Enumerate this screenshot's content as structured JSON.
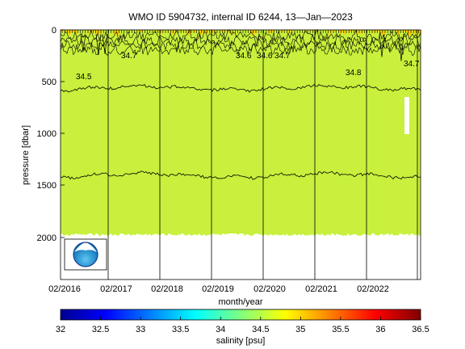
{
  "chart_data": {
    "type": "heatmap",
    "title": "WMO ID 5904732, internal ID 6244, 13—Jan—2023",
    "xlabel": "month/year",
    "ylabel": "pressure [dbar]",
    "x_tick_labels": [
      "02/2016",
      "02/2017",
      "02/2018",
      "02/2019",
      "02/2020",
      "02/2021",
      "02/2022"
    ],
    "y_tick_labels": [
      "0",
      "500",
      "1000",
      "1500",
      "2000"
    ],
    "y_ticks": [
      0,
      500,
      1000,
      1500,
      2000
    ],
    "ylim": [
      0,
      2400
    ],
    "y_reversed": true,
    "x_range": [
      "2016-02",
      "2023-01"
    ],
    "colorbar": {
      "label": "salinity [psu]",
      "range": [
        32,
        36.5
      ],
      "tick_labels": [
        "32",
        "32.5",
        "33",
        "33.5",
        "34",
        "34.5",
        "35",
        "35.5",
        "36",
        "36.5"
      ],
      "ticks": [
        32,
        32.5,
        33,
        33.5,
        34,
        34.5,
        35,
        35.5,
        36,
        36.5
      ],
      "colormap": "jet"
    },
    "field": {
      "dominant_value": 34.5,
      "dominant_color": "#c8f03c",
      "near_surface_value": 35.0,
      "near_surface_color": "#ffd000",
      "max_depth_approx": 1980
    },
    "contours": [
      {
        "level": "34.5",
        "approx_pressure": 560
      },
      {
        "level": "34.5",
        "approx_pressure": 1400
      }
    ],
    "contour_labels": [
      "34.5",
      "34.6",
      "34.7",
      "34.8",
      "34.7",
      "34.6",
      "34.7"
    ],
    "logo": {
      "text": "NOAA"
    }
  }
}
